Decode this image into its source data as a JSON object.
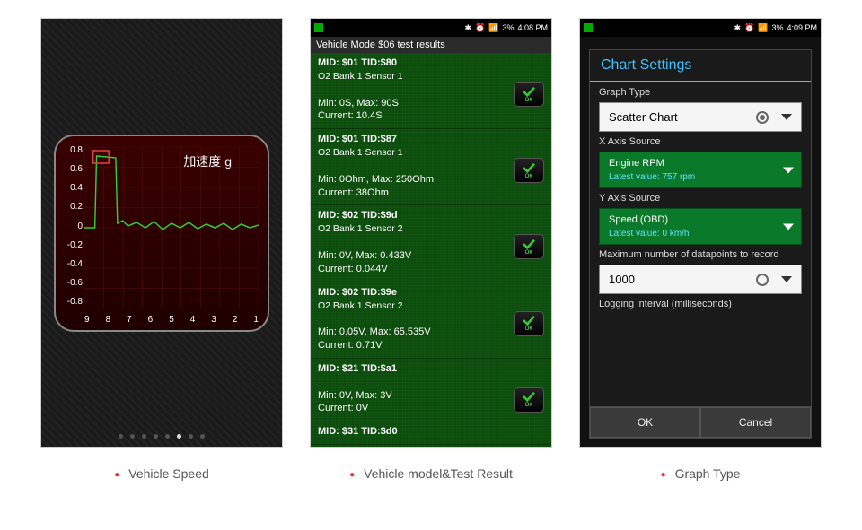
{
  "captions": [
    "Vehicle Speed",
    "Vehicle model&Test Result",
    "Graph Type"
  ],
  "statusbar": {
    "battery": "3%",
    "time1": "4:08 PM",
    "time2": "4:09 PM"
  },
  "chart": {
    "type": "line",
    "title": "加速度 g",
    "y_ticks": [
      "0.8",
      "0.6",
      "0.4",
      "0.2",
      "0",
      "-0.2",
      "-0.4",
      "-0.6",
      "-0.8"
    ],
    "x_ticks": [
      "9",
      "8",
      "7",
      "6",
      "5",
      "4",
      "3",
      "2",
      "1"
    ],
    "ylim": [
      -0.9,
      0.9
    ],
    "line_color": "#33cc33",
    "highlight_box_color": "#d44",
    "grid_color": "#551111",
    "background_color": "#2a0000",
    "points": [
      [
        0,
        0.0
      ],
      [
        0.06,
        0.0
      ],
      [
        0.07,
        0.8
      ],
      [
        0.18,
        0.78
      ],
      [
        0.19,
        0.05
      ],
      [
        0.22,
        0.08
      ],
      [
        0.25,
        0.02
      ],
      [
        0.3,
        0.06
      ],
      [
        0.35,
        0.0
      ],
      [
        0.4,
        0.07
      ],
      [
        0.45,
        -0.02
      ],
      [
        0.5,
        0.05
      ],
      [
        0.55,
        0.0
      ],
      [
        0.6,
        0.06
      ],
      [
        0.65,
        -0.01
      ],
      [
        0.7,
        0.04
      ],
      [
        0.75,
        0.0
      ],
      [
        0.8,
        0.05
      ],
      [
        0.85,
        -0.02
      ],
      [
        0.9,
        0.04
      ],
      [
        0.95,
        0.0
      ],
      [
        1.0,
        0.03
      ]
    ],
    "dots_total": 8,
    "dots_active": 5
  },
  "results": {
    "header": "Vehicle Mode $06 test results",
    "entries": [
      {
        "mid": "MID: $01 TID:$80",
        "sensor": "O2 Bank 1 Sensor 1",
        "min": "Min: 0S, Max: 90S",
        "cur": "Current: 10.4S"
      },
      {
        "mid": "MID: $01 TID:$87",
        "sensor": "O2 Bank 1 Sensor 1",
        "min": "Min: 0Ohm, Max: 250Ohm",
        "cur": "Current: 38Ohm"
      },
      {
        "mid": "MID: $02 TID:$9d",
        "sensor": "O2 Bank 1 Sensor 2",
        "min": "Min: 0V, Max: 0.433V",
        "cur": "Current: 0.044V"
      },
      {
        "mid": "MID: $02 TID:$9e",
        "sensor": "O2 Bank 1 Sensor 2",
        "min": "Min: 0.05V, Max: 65.535V",
        "cur": "Current: 0.71V"
      },
      {
        "mid": "MID: $21 TID:$a1",
        "sensor": "",
        "min": "Min: 0V, Max: 3V",
        "cur": "Current: 0V"
      },
      {
        "mid": "MID: $31 TID:$d0",
        "sensor": "",
        "min": "",
        "cur": ""
      }
    ],
    "ok_label": "OK"
  },
  "settings": {
    "title": "Chart Settings",
    "graph_type_label": "Graph Type",
    "graph_type_value": "Scatter Chart",
    "x_label": "X Axis Source",
    "x_value": "Engine RPM",
    "x_latest": "Latest value: 757 rpm",
    "y_label": "Y Axis Source",
    "y_value": "Speed (OBD)",
    "y_latest": "Latest value: 0 km/h",
    "max_label": "Maximum number of datapoints to record",
    "max_value": "1000",
    "interval_label": "Logging interval (milliseconds)",
    "ok": "OK",
    "cancel": "Cancel"
  }
}
